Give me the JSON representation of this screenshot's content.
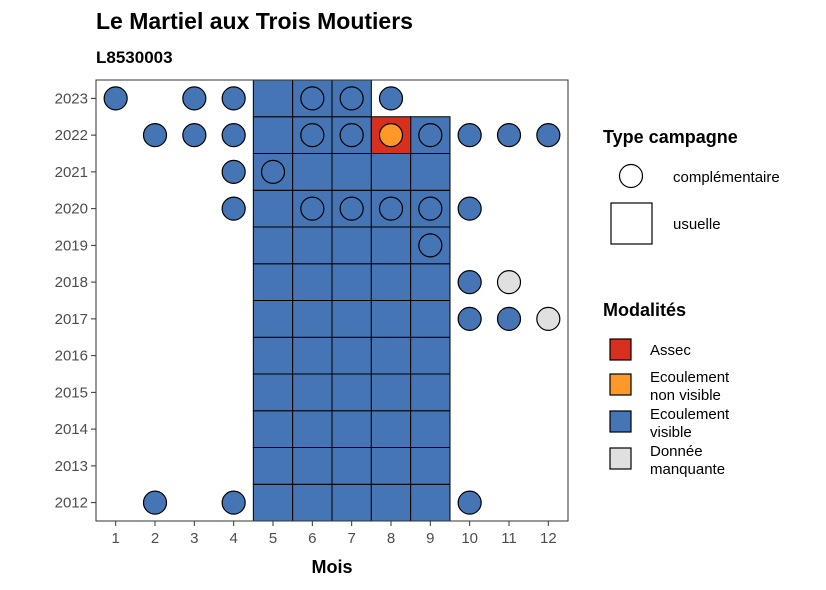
{
  "chart_data": {
    "type": "heatmap",
    "title": "Le Martiel aux Trois Moutiers",
    "subtitle": "L8530003",
    "xlabel": "Mois",
    "ylabel": "",
    "x_ticks": [
      "1",
      "2",
      "3",
      "4",
      "5",
      "6",
      "7",
      "8",
      "9",
      "10",
      "11",
      "12"
    ],
    "y_ticks": [
      "2012",
      "2013",
      "2014",
      "2015",
      "2016",
      "2017",
      "2018",
      "2019",
      "2020",
      "2021",
      "2022",
      "2023"
    ],
    "xlim": [
      0.5,
      12.5
    ],
    "ylim": [
      2011.5,
      2023.5
    ],
    "grid": false,
    "legend_placement": "right",
    "colors": {
      "Assec": "#d7301f",
      "Ecoulement non visible": "#fe9929",
      "Ecoulement visible": "#4575b4",
      "Donnée manquante": "#e0e0e0"
    },
    "legend_shape": {
      "title": "Type campagne",
      "entries": [
        {
          "label": "complémentaire",
          "shape": "circle"
        },
        {
          "label": "usuelle",
          "shape": "square"
        }
      ]
    },
    "legend_fill": {
      "title": "Modalités",
      "entries": [
        {
          "label_lines": [
            "Assec"
          ],
          "key": "Assec"
        },
        {
          "label_lines": [
            "Ecoulement",
            "non visible"
          ],
          "key": "Ecoulement non visible"
        },
        {
          "label_lines": [
            "Ecoulement",
            "visible"
          ],
          "key": "Ecoulement visible"
        },
        {
          "label_lines": [
            "Donnée",
            "manquante"
          ],
          "key": "Donnée manquante"
        }
      ]
    },
    "usuelle": [
      {
        "year": 2012,
        "months": [
          5,
          6,
          7,
          8,
          9
        ],
        "modalite": "Ecoulement visible"
      },
      {
        "year": 2013,
        "months": [
          5,
          6,
          7,
          8,
          9
        ],
        "modalite": "Ecoulement visible"
      },
      {
        "year": 2014,
        "months": [
          5,
          6,
          7,
          8,
          9
        ],
        "modalite": "Ecoulement visible"
      },
      {
        "year": 2015,
        "months": [
          5,
          6,
          7,
          8,
          9
        ],
        "modalite": "Ecoulement visible"
      },
      {
        "year": 2016,
        "months": [
          5,
          6,
          7,
          8,
          9
        ],
        "modalite": "Ecoulement visible"
      },
      {
        "year": 2017,
        "months": [
          5,
          6,
          7,
          8,
          9
        ],
        "modalite": "Ecoulement visible"
      },
      {
        "year": 2018,
        "months": [
          5,
          6,
          7,
          8,
          9
        ],
        "modalite": "Ecoulement visible"
      },
      {
        "year": 2019,
        "months": [
          5,
          6,
          7,
          8,
          9
        ],
        "modalite": "Ecoulement visible"
      },
      {
        "year": 2020,
        "months": [
          5,
          6,
          7,
          8,
          9
        ],
        "modalite": "Ecoulement visible"
      },
      {
        "year": 2021,
        "months": [
          5,
          6,
          7,
          8,
          9
        ],
        "modalite": "Ecoulement visible"
      },
      {
        "year": 2022,
        "months": [
          5,
          6,
          7,
          9
        ],
        "modalite": "Ecoulement visible"
      },
      {
        "year": 2022,
        "months": [
          8
        ],
        "modalite": "Assec"
      },
      {
        "year": 2023,
        "months": [
          5,
          6,
          7
        ],
        "modalite": "Ecoulement visible"
      }
    ],
    "complementaire": [
      {
        "year": 2023,
        "months": [
          1,
          3,
          4,
          6,
          7,
          8
        ],
        "modalite": "Ecoulement visible"
      },
      {
        "year": 2022,
        "months": [
          2,
          3,
          4,
          6,
          7,
          9,
          10,
          11,
          12
        ],
        "modalite": "Ecoulement visible"
      },
      {
        "year": 2022,
        "months": [
          8
        ],
        "modalite": "Ecoulement non visible"
      },
      {
        "year": 2021,
        "months": [
          4,
          5
        ],
        "modalite": "Ecoulement visible"
      },
      {
        "year": 2020,
        "months": [
          4,
          6,
          7,
          8,
          9,
          10
        ],
        "modalite": "Ecoulement visible"
      },
      {
        "year": 2019,
        "months": [
          9
        ],
        "modalite": "Ecoulement visible"
      },
      {
        "year": 2018,
        "months": [
          10
        ],
        "modalite": "Ecoulement visible"
      },
      {
        "year": 2018,
        "months": [
          11
        ],
        "modalite": "Donnée manquante"
      },
      {
        "year": 2017,
        "months": [
          10,
          11
        ],
        "modalite": "Ecoulement visible"
      },
      {
        "year": 2017,
        "months": [
          12
        ],
        "modalite": "Donnée manquante"
      },
      {
        "year": 2012,
        "months": [
          2,
          4,
          10
        ],
        "modalite": "Ecoulement visible"
      }
    ]
  }
}
